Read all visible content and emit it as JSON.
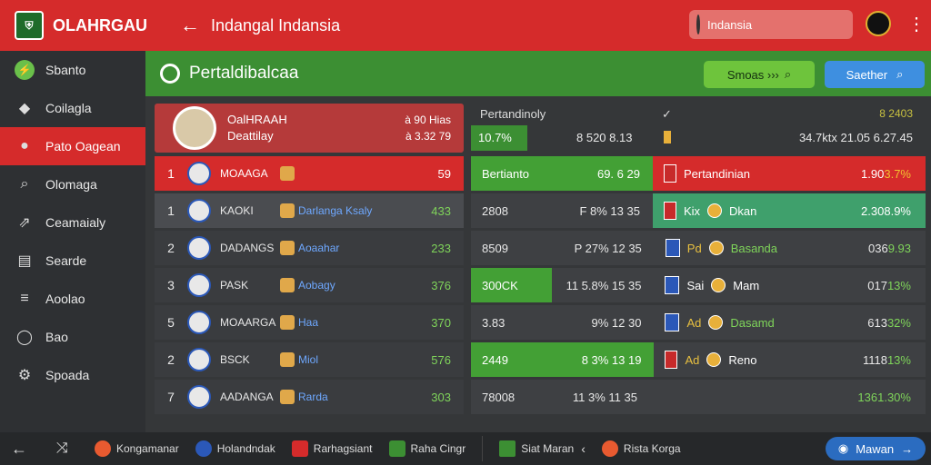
{
  "header": {
    "app_name": "OLAHRGAU",
    "page_heading": "Indangal Indansia",
    "search_value": "Indansia"
  },
  "sidebar": {
    "items": [
      {
        "label": "Sbanto",
        "icon": "bolt-icon"
      },
      {
        "label": "Coilagla",
        "icon": "shield-icon"
      },
      {
        "label": "Pato Oagean",
        "icon": "user-icon"
      },
      {
        "label": "Olomaga",
        "icon": "search-icon"
      },
      {
        "label": "Ceamaialy",
        "icon": "runner-icon"
      },
      {
        "label": "Searde",
        "icon": "inbox-icon"
      },
      {
        "label": "Aoolao",
        "icon": "list-icon"
      },
      {
        "label": "Bao",
        "icon": "globe-icon"
      },
      {
        "label": "Spoada",
        "icon": "gear-icon"
      }
    ]
  },
  "section": {
    "title": "Pertaldibalcaa",
    "btn_green": "Smoas ›››",
    "btn_blue": "Saether"
  },
  "feature": {
    "name": "OalHRAAH",
    "sub": "Deattilay",
    "line1": "à 90 Hias",
    "line2": "à 3.32 79"
  },
  "ranking": [
    {
      "pos": "1",
      "team": "MOAAGA",
      "sub": "",
      "pts": "59"
    },
    {
      "pos": "1",
      "team": "KAOKI",
      "sub": "Darlanga Ksaly",
      "pts": "433"
    },
    {
      "pos": "2",
      "team": "DADANGS",
      "sub": "Aoaahar",
      "pts": "233"
    },
    {
      "pos": "3",
      "team": "PASK",
      "sub": "Aobagy",
      "pts": "376"
    },
    {
      "pos": "5",
      "team": "MOAARGA",
      "sub": "Haa",
      "pts": "370"
    },
    {
      "pos": "2",
      "team": "BSCK",
      "sub": "Miol",
      "pts": "576"
    },
    {
      "pos": "7",
      "team": "AADANGA",
      "sub": "Rarda",
      "pts": "303"
    }
  ],
  "stats_head": {
    "title": "Pertandinoly",
    "check": "✓",
    "corner": "8 2403",
    "highlight": "10.7%",
    "mid": "8  520  8.13",
    "right": "34.7ktx   21.05    6.27.45"
  },
  "stats": [
    {
      "a": "Bertianto",
      "b": "69.   6  29",
      "c": "Pertandinian",
      "d": "1.90",
      "e": "3.7%"
    },
    {
      "a": "2808",
      "b": "F  8%   13  35",
      "c": "Kix",
      "c2": "Dkan",
      "d": "2.30",
      "e": "8.9%"
    },
    {
      "a": "8509",
      "b": "P  27%  12  35",
      "c": "Pd",
      "c2": "Basanda",
      "d": "036",
      "e": "9.93"
    },
    {
      "a": "300CK",
      "b": "11  5.8%  15  35",
      "c": "Sai",
      "c2": "Mam",
      "d": "017",
      "e": "13%"
    },
    {
      "a": "3.83",
      "b": "9%   12  30",
      "c": "Ad",
      "c2": "Dasamd",
      "d": "613",
      "e": "32%"
    },
    {
      "a": "2449",
      "b": "8  3%   13  19",
      "c": "Ad",
      "c2": "Reno",
      "d": "1118",
      "e": "13%"
    },
    {
      "a": "78008",
      "b": "11  3%   11  35",
      "c": "",
      "c2": "",
      "d": "136",
      "e": "1.30%"
    }
  ],
  "bottom": {
    "items": [
      "Kongamanar",
      "Holandndak",
      "Rarhagsiant",
      "Raha Cingr"
    ],
    "right_item": "Siat Maran",
    "right_item2": "Rista Korga",
    "cta": "Mawan"
  }
}
